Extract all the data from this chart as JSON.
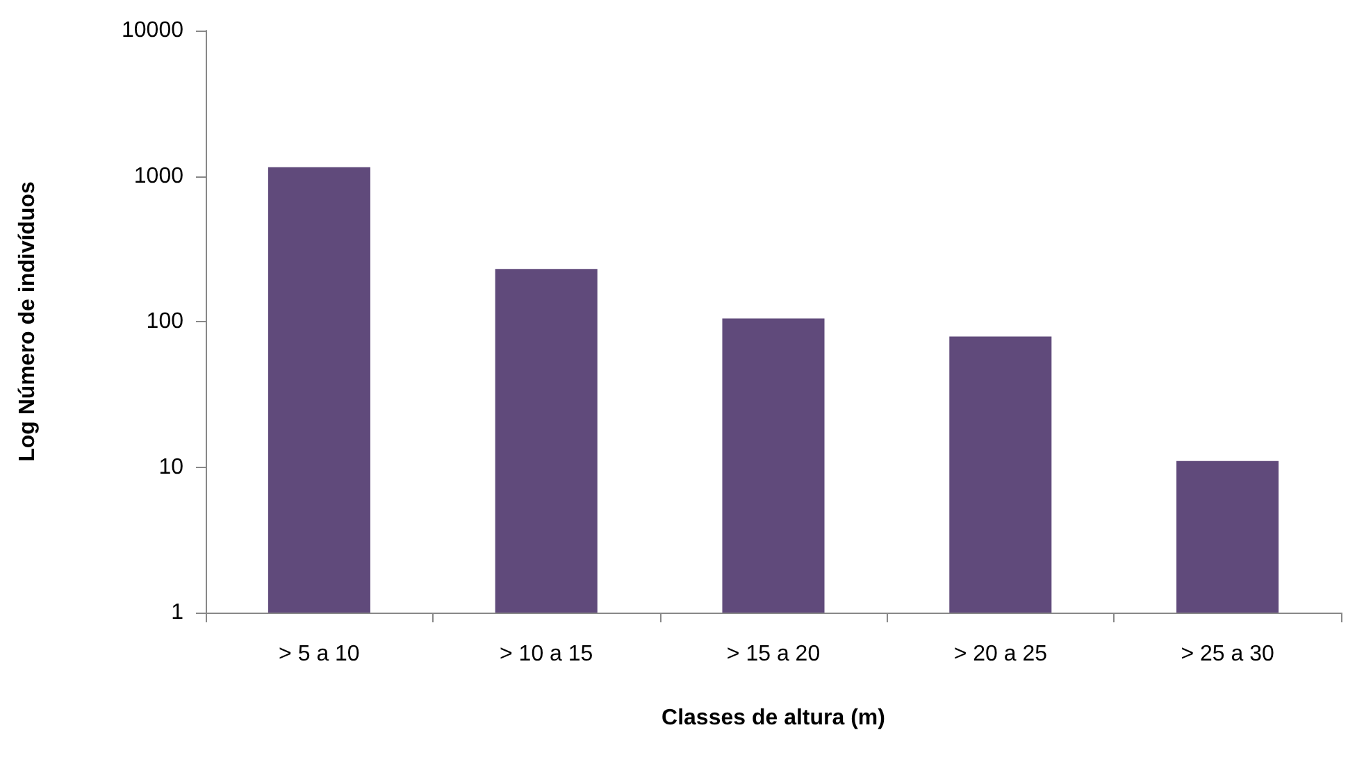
{
  "chart_data": {
    "type": "bar",
    "xlabel": "Classes de altura (m)",
    "ylabel": "Log Número de indivíduos",
    "categories": [
      "> 5 a 10",
      "> 10 a 15",
      "> 15 a 20",
      "> 20 a 25",
      "> 25 a 30"
    ],
    "values": [
      1150,
      230,
      105,
      79,
      11
    ],
    "color": "#604a7b",
    "log": "y",
    "ylim": [
      1,
      10000
    ],
    "yticks": [
      1,
      10,
      100,
      1000,
      10000
    ],
    "grid": false
  }
}
